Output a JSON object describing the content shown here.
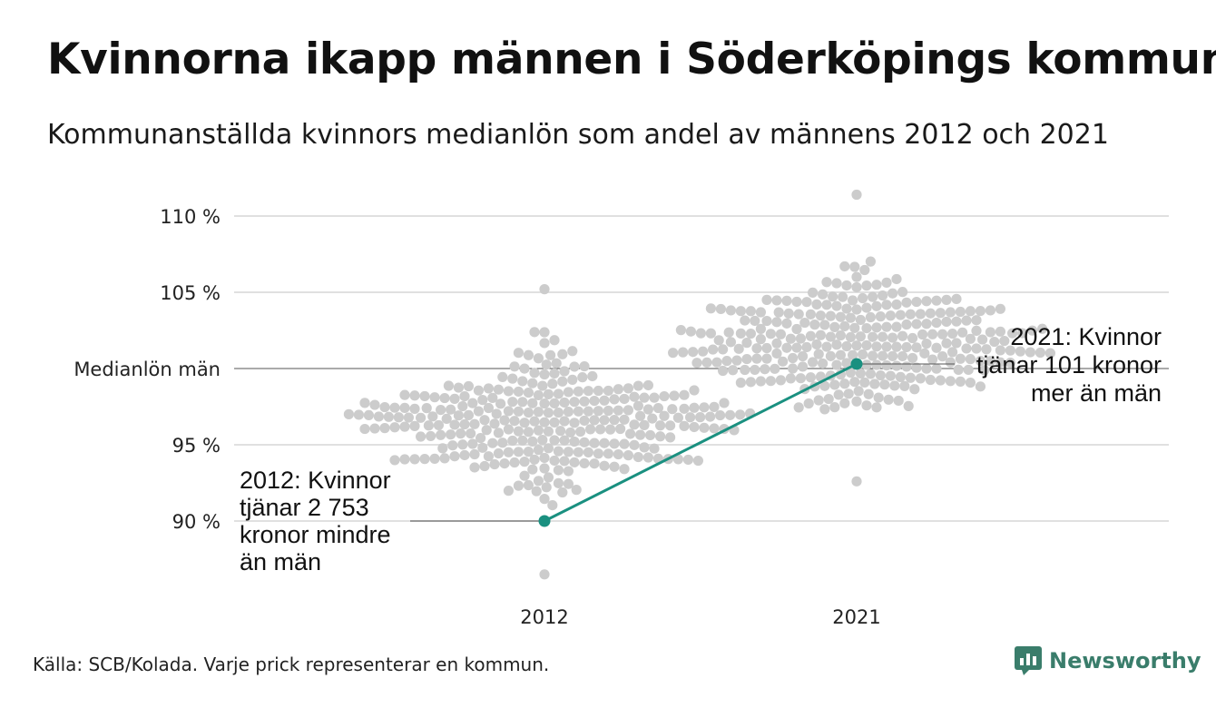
{
  "title": "Kvinnorna ikapp männen i Söderköpings kommun",
  "subtitle": "Kommunanställda kvinnors medianlön som andel av männens 2012 och 2021",
  "source": "Källa: SCB/Kolada. Varje prick representerar en kommun.",
  "logo_text": "Newsworthy",
  "colors": {
    "highlight": "#1a9080",
    "dots": "#cccccc",
    "grid": "#e0e0e0",
    "reference": "#555555",
    "logo": "#3a7d6b"
  },
  "chart_data": {
    "type": "scatter",
    "title": "Kvinnorna ikapp männen i Söderköpings kommun",
    "subtitle": "Kommunanställda kvinnors medianlön som andel av männens 2012 och 2021",
    "categories": [
      "2012",
      "2021"
    ],
    "ylim": [
      87,
      111.5
    ],
    "y_ticks": [
      {
        "value": 90,
        "label": "90 %"
      },
      {
        "value": 95,
        "label": "95 %"
      },
      {
        "value": 100,
        "label": "Medianlön män"
      },
      {
        "value": 105,
        "label": "105 %"
      },
      {
        "value": 110,
        "label": "110 %"
      }
    ],
    "reference_line": {
      "value": 100,
      "label": "Medianlön män"
    },
    "highlight": {
      "name": "Söderköping",
      "values": [
        90.0,
        100.3
      ]
    },
    "background_distribution": [
      {
        "category": "2012",
        "min": 86.5,
        "max": 105.2,
        "median": 96.5,
        "count": 290
      },
      {
        "category": "2021",
        "min": 92.6,
        "max": 111.4,
        "median": 101.5,
        "count": 290
      }
    ],
    "annotations": [
      {
        "category": "2012",
        "lines": [
          "2012: Kvinnor",
          "tjänar 2 753",
          "kronor mindre",
          "än män"
        ]
      },
      {
        "category": "2021",
        "lines": [
          "2021: Kvinnor",
          "tjänar 101 kronor",
          "mer än män"
        ]
      }
    ],
    "grid": true,
    "legend": "none"
  }
}
